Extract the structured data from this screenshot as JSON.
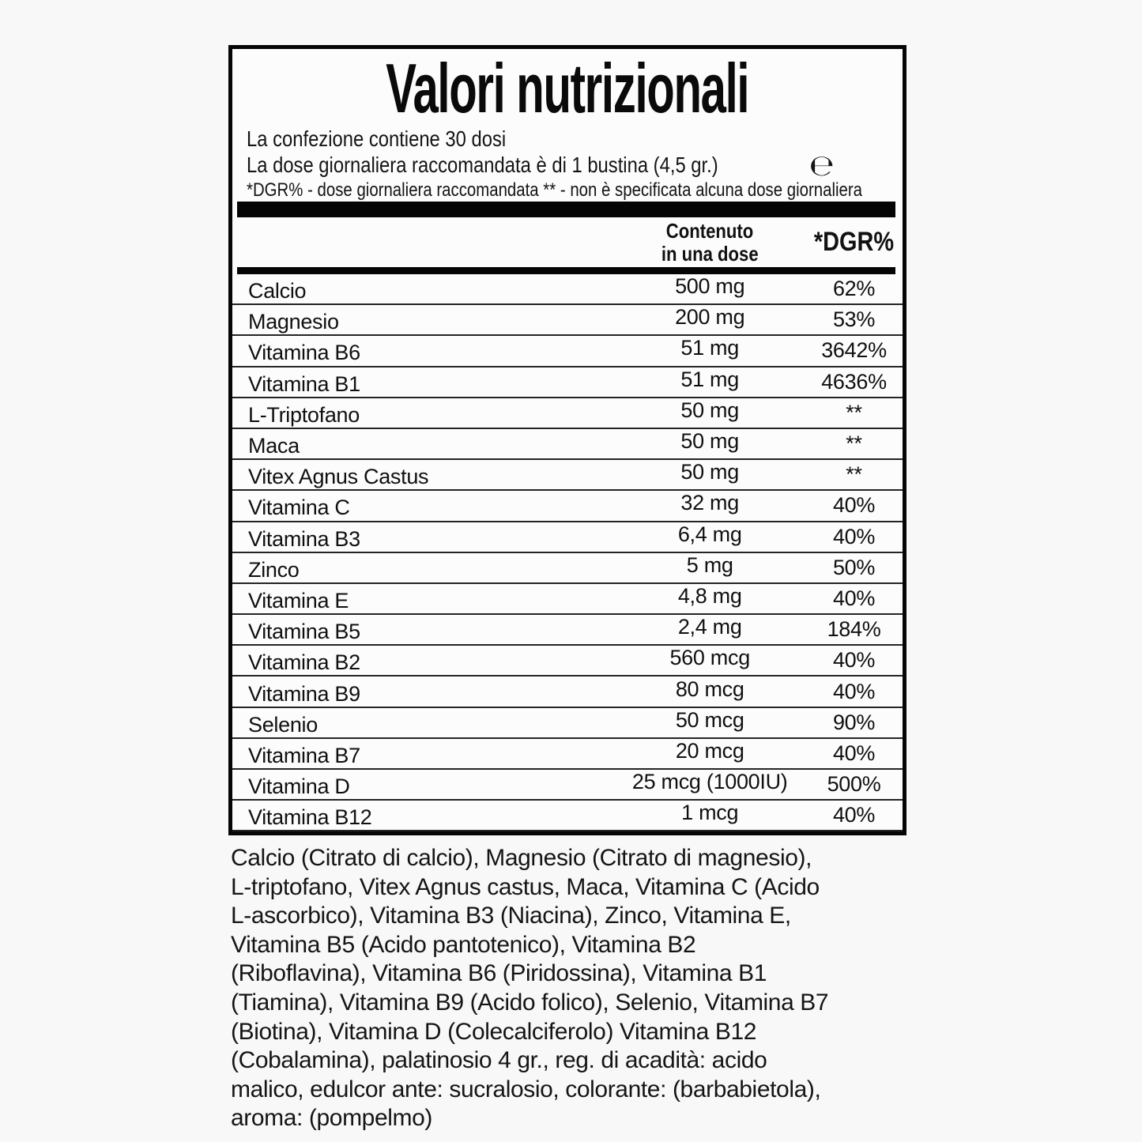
{
  "label": {
    "title": "Valori nutrizionali",
    "intro": {
      "line1": "La confezione contiene 30 dosi",
      "line2": "La dose giornaliera raccomandata è di 1 bustina (4,5 gr.)",
      "estimated_sign": "℮",
      "line3": "*DGR% - dose giornaliera raccomandata ** - non è specificata alcuna dose giornaliera"
    },
    "columns": {
      "amount_line1": "Contenuto",
      "amount_line2": "in una dose",
      "dgr": "*DGR%"
    },
    "rows": [
      {
        "name": "Calcio",
        "amount": "500 mg",
        "dgr": "62%"
      },
      {
        "name": "Magnesio",
        "amount": "200 mg",
        "dgr": "53%"
      },
      {
        "name": "Vitamina B6",
        "amount": "51 mg",
        "dgr": "3642%"
      },
      {
        "name": "Vitamina B1",
        "amount": "51 mg",
        "dgr": "4636%"
      },
      {
        "name": "L-Triptofano",
        "amount": "50 mg",
        "dgr": "**"
      },
      {
        "name": "Maca",
        "amount": "50 mg",
        "dgr": "**"
      },
      {
        "name": "Vitex Agnus Castus",
        "amount": "50 mg",
        "dgr": "**"
      },
      {
        "name": "Vitamina C",
        "amount": "32 mg",
        "dgr": "40%"
      },
      {
        "name": "Vitamina B3",
        "amount": "6,4 mg",
        "dgr": "40%"
      },
      {
        "name": "Zinco",
        "amount": "5 mg",
        "dgr": "50%"
      },
      {
        "name": "Vitamina E",
        "amount": "4,8 mg",
        "dgr": "40%"
      },
      {
        "name": "Vitamina B5",
        "amount": "2,4 mg",
        "dgr": "184%"
      },
      {
        "name": "Vitamina B2",
        "amount": "560 mcg",
        "dgr": "40%"
      },
      {
        "name": "Vitamina B9",
        "amount": "80 mcg",
        "dgr": "40%"
      },
      {
        "name": "Selenio",
        "amount": "50 mcg",
        "dgr": "90%"
      },
      {
        "name": "Vitamina B7",
        "amount": "20 mcg",
        "dgr": "40%"
      },
      {
        "name": "Vitamina D",
        "amount": "25 mcg (1000IU)",
        "dgr": "500%"
      },
      {
        "name": "Vitamina B12",
        "amount": "1 mcg",
        "dgr": "40%"
      }
    ]
  },
  "ingredients": {
    "lines": [
      "Calcio (Citrato di calcio), Magnesio (Citrato di magnesio),",
      "L-triptofano, Vitex Agnus castus, Maca, Vitamina C (Acido",
      "L-ascorbico), Vitamina B3 (Niacina), Zinco, Vitamina E,",
      "Vitamina B5 (Acido pantotenico), Vitamina B2",
      "(Riboflavina), Vitamina B6 (Piridossina), Vitamina B1",
      "(Tiamina), Vitamina B9 (Acido folico), Selenio, Vitamina B7",
      "(Biotina), Vitamina D (Colecalciferolo) Vitamina B12",
      "(Cobalamina), palatinosio 4 gr., reg. di acadità: acido",
      "malico, edulcor ante: sucralosio, colorante: (barbabietola),",
      "aroma: (pompelmo)"
    ]
  },
  "colors": {
    "text": "#111111",
    "bar": "#050505",
    "page_bg": "#f8f8f8",
    "box_bg": "#fcfcfc"
  }
}
